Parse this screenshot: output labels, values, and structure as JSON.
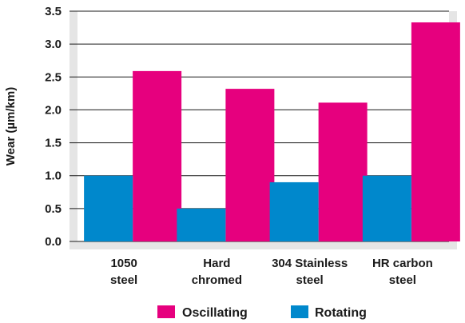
{
  "chart_data": {
    "type": "bar",
    "ylabel": "Wear (µm/km)",
    "ylim": [
      0,
      3.5
    ],
    "yticks": [
      "0.0",
      "0.5",
      "1.0",
      "1.5",
      "2.0",
      "2.5",
      "3.0",
      "3.5"
    ],
    "categories": [
      [
        "1050",
        "steel"
      ],
      [
        "Hard",
        "chromed"
      ],
      [
        "304 Stainless",
        "steel"
      ],
      [
        "HR carbon",
        "steel"
      ]
    ],
    "series": [
      {
        "name": "Oscillating",
        "color": "#e6007e",
        "values": [
          2.59,
          2.32,
          2.11,
          3.33
        ]
      },
      {
        "name": "Rotating",
        "color": "#0088cc",
        "values": [
          1.0,
          0.5,
          0.9,
          1.0
        ]
      }
    ],
    "grid": true,
    "legend_position": "bottom"
  }
}
